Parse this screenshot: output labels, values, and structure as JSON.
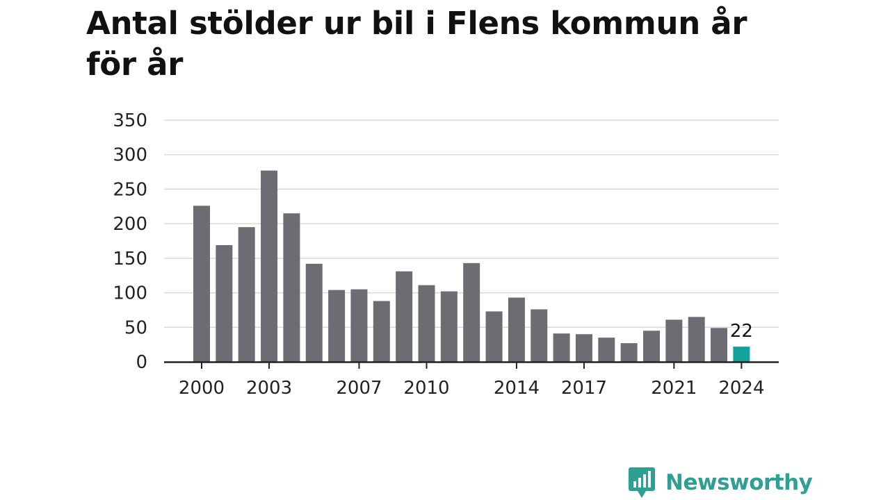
{
  "title": "Antal stölder ur bil i Flens kommun år för år",
  "brand": {
    "name": "Newsworthy",
    "icon": "newsworthy-logo-icon",
    "color": "#2f9e93"
  },
  "colors": {
    "bar": "#6d6c72",
    "highlight": "#10a39a",
    "grid": "#d9d9d9",
    "axis": "#222222",
    "text": "#111111"
  },
  "chart_data": {
    "type": "bar",
    "categories": [
      "2000",
      "2001",
      "2002",
      "2003",
      "2004",
      "2005",
      "2006",
      "2007",
      "2008",
      "2009",
      "2010",
      "2011",
      "2012",
      "2013",
      "2014",
      "2015",
      "2016",
      "2017",
      "2018",
      "2019",
      "2020",
      "2021",
      "2022",
      "2023",
      "2024"
    ],
    "values": [
      226,
      169,
      195,
      277,
      215,
      142,
      104,
      105,
      88,
      131,
      111,
      102,
      143,
      73,
      93,
      76,
      41,
      40,
      35,
      27,
      45,
      61,
      65,
      49,
      22
    ],
    "x_tick_labels": [
      "2000",
      "2003",
      "2007",
      "2010",
      "2014",
      "2017",
      "2021",
      "2024"
    ],
    "y_ticks": [
      0,
      50,
      100,
      150,
      200,
      250,
      300,
      350
    ],
    "ylim": [
      0,
      350
    ],
    "highlight_category": "2024",
    "data_labels": [
      {
        "category": "2024",
        "text": "22"
      }
    ],
    "grid": true,
    "legend": "none",
    "xlabel": "",
    "ylabel": ""
  }
}
